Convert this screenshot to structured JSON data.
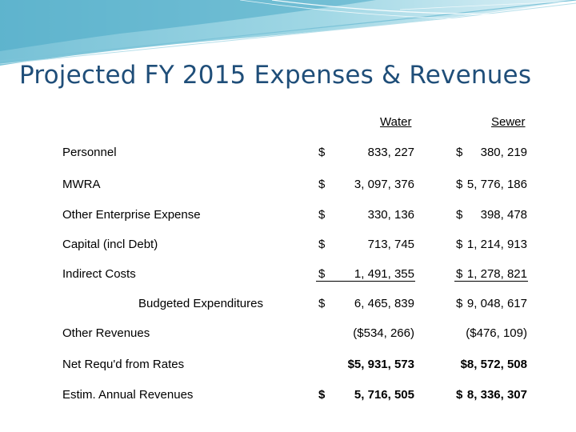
{
  "slide": {
    "title": "Projected FY 2015 Expenses & Revenues",
    "columns": {
      "water": "Water",
      "sewer": "Sewer"
    },
    "rows": [
      {
        "label": "Personnel",
        "water_dollar": "$",
        "water": "833, 227",
        "sewer_dollar": "$",
        "sewer": "380, 219"
      },
      {
        "label": "MWRA",
        "water_dollar": "$",
        "water": "3, 097, 376",
        "sewer_dollar": "$",
        "sewer": "5, 776, 186"
      },
      {
        "label": "Other Enterprise Expense",
        "water_dollar": "$",
        "water": "330, 136",
        "sewer_dollar": "$",
        "sewer": "398, 478"
      },
      {
        "label": "Capital (incl Debt)",
        "water_dollar": "$",
        "water": "713, 745",
        "sewer_dollar": "$",
        "sewer": "1, 214, 913"
      },
      {
        "label": "Indirect Costs",
        "water_dollar": "$",
        "water": "1, 491, 355",
        "sewer_dollar": "$",
        "sewer": "1, 278, 821"
      },
      {
        "label": "Budgeted Expenditures",
        "water_dollar": "$",
        "water": "6, 465, 839",
        "sewer_dollar": "$",
        "sewer": "9, 048, 617"
      },
      {
        "label": "Other Revenues",
        "water_dollar": "",
        "water": "($534, 266)",
        "sewer_dollar": "",
        "sewer": "($476, 109)"
      },
      {
        "label": "Net Requ'd from Rates",
        "water_dollar": "",
        "water": "$5, 931, 573",
        "sewer_dollar": "",
        "sewer": "$8, 572, 508"
      },
      {
        "label": "Estim. Annual Revenues",
        "water_dollar": "$",
        "water": "5, 716, 505",
        "sewer_dollar": "$",
        "sewer": "8, 336, 307"
      }
    ]
  }
}
